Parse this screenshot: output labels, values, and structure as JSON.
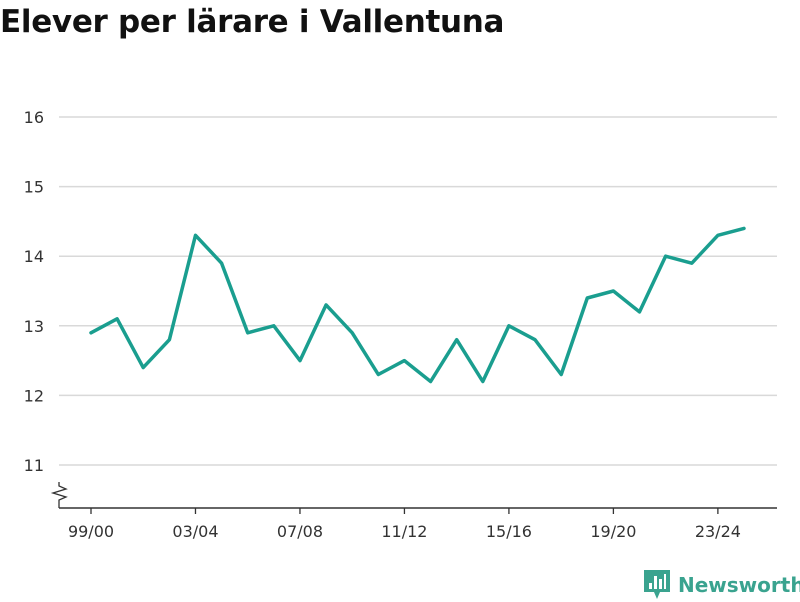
{
  "brand": {
    "name": "Newsworthy",
    "color": "#3aa38f",
    "icon": "bar-chart-logo-icon"
  },
  "chart_data": {
    "type": "line",
    "title": "Elever per lärare i Vallentuna",
    "xlabel": "",
    "ylabel": "",
    "x": [
      "99/00",
      "00/01",
      "01/02",
      "02/03",
      "03/04",
      "04/05",
      "05/06",
      "06/07",
      "07/08",
      "08/09",
      "09/10",
      "10/11",
      "11/12",
      "12/13",
      "13/14",
      "14/15",
      "15/16",
      "16/17",
      "17/18",
      "18/19",
      "19/20",
      "20/21",
      "21/22",
      "22/23",
      "23/24",
      "24/25"
    ],
    "x_tick_labels": [
      "99/00",
      "03/04",
      "07/08",
      "11/12",
      "15/16",
      "19/20",
      "23/24"
    ],
    "y_ticks": [
      11,
      12,
      13,
      14,
      15,
      16
    ],
    "ylim": [
      10.4,
      16.6
    ],
    "y_axis_break": true,
    "grid": true,
    "line_color": "#1a9e8f",
    "grid_color": "#d9d9d9",
    "series": [
      {
        "values": [
          12.9,
          13.1,
          12.4,
          12.8,
          14.3,
          13.9,
          12.9,
          13.0,
          12.5,
          13.3,
          12.9,
          12.3,
          12.5,
          12.2,
          12.8,
          12.2,
          13.0,
          12.8,
          12.3,
          13.4,
          13.5,
          13.2,
          14.0,
          13.9,
          14.3,
          14.4
        ]
      }
    ]
  }
}
